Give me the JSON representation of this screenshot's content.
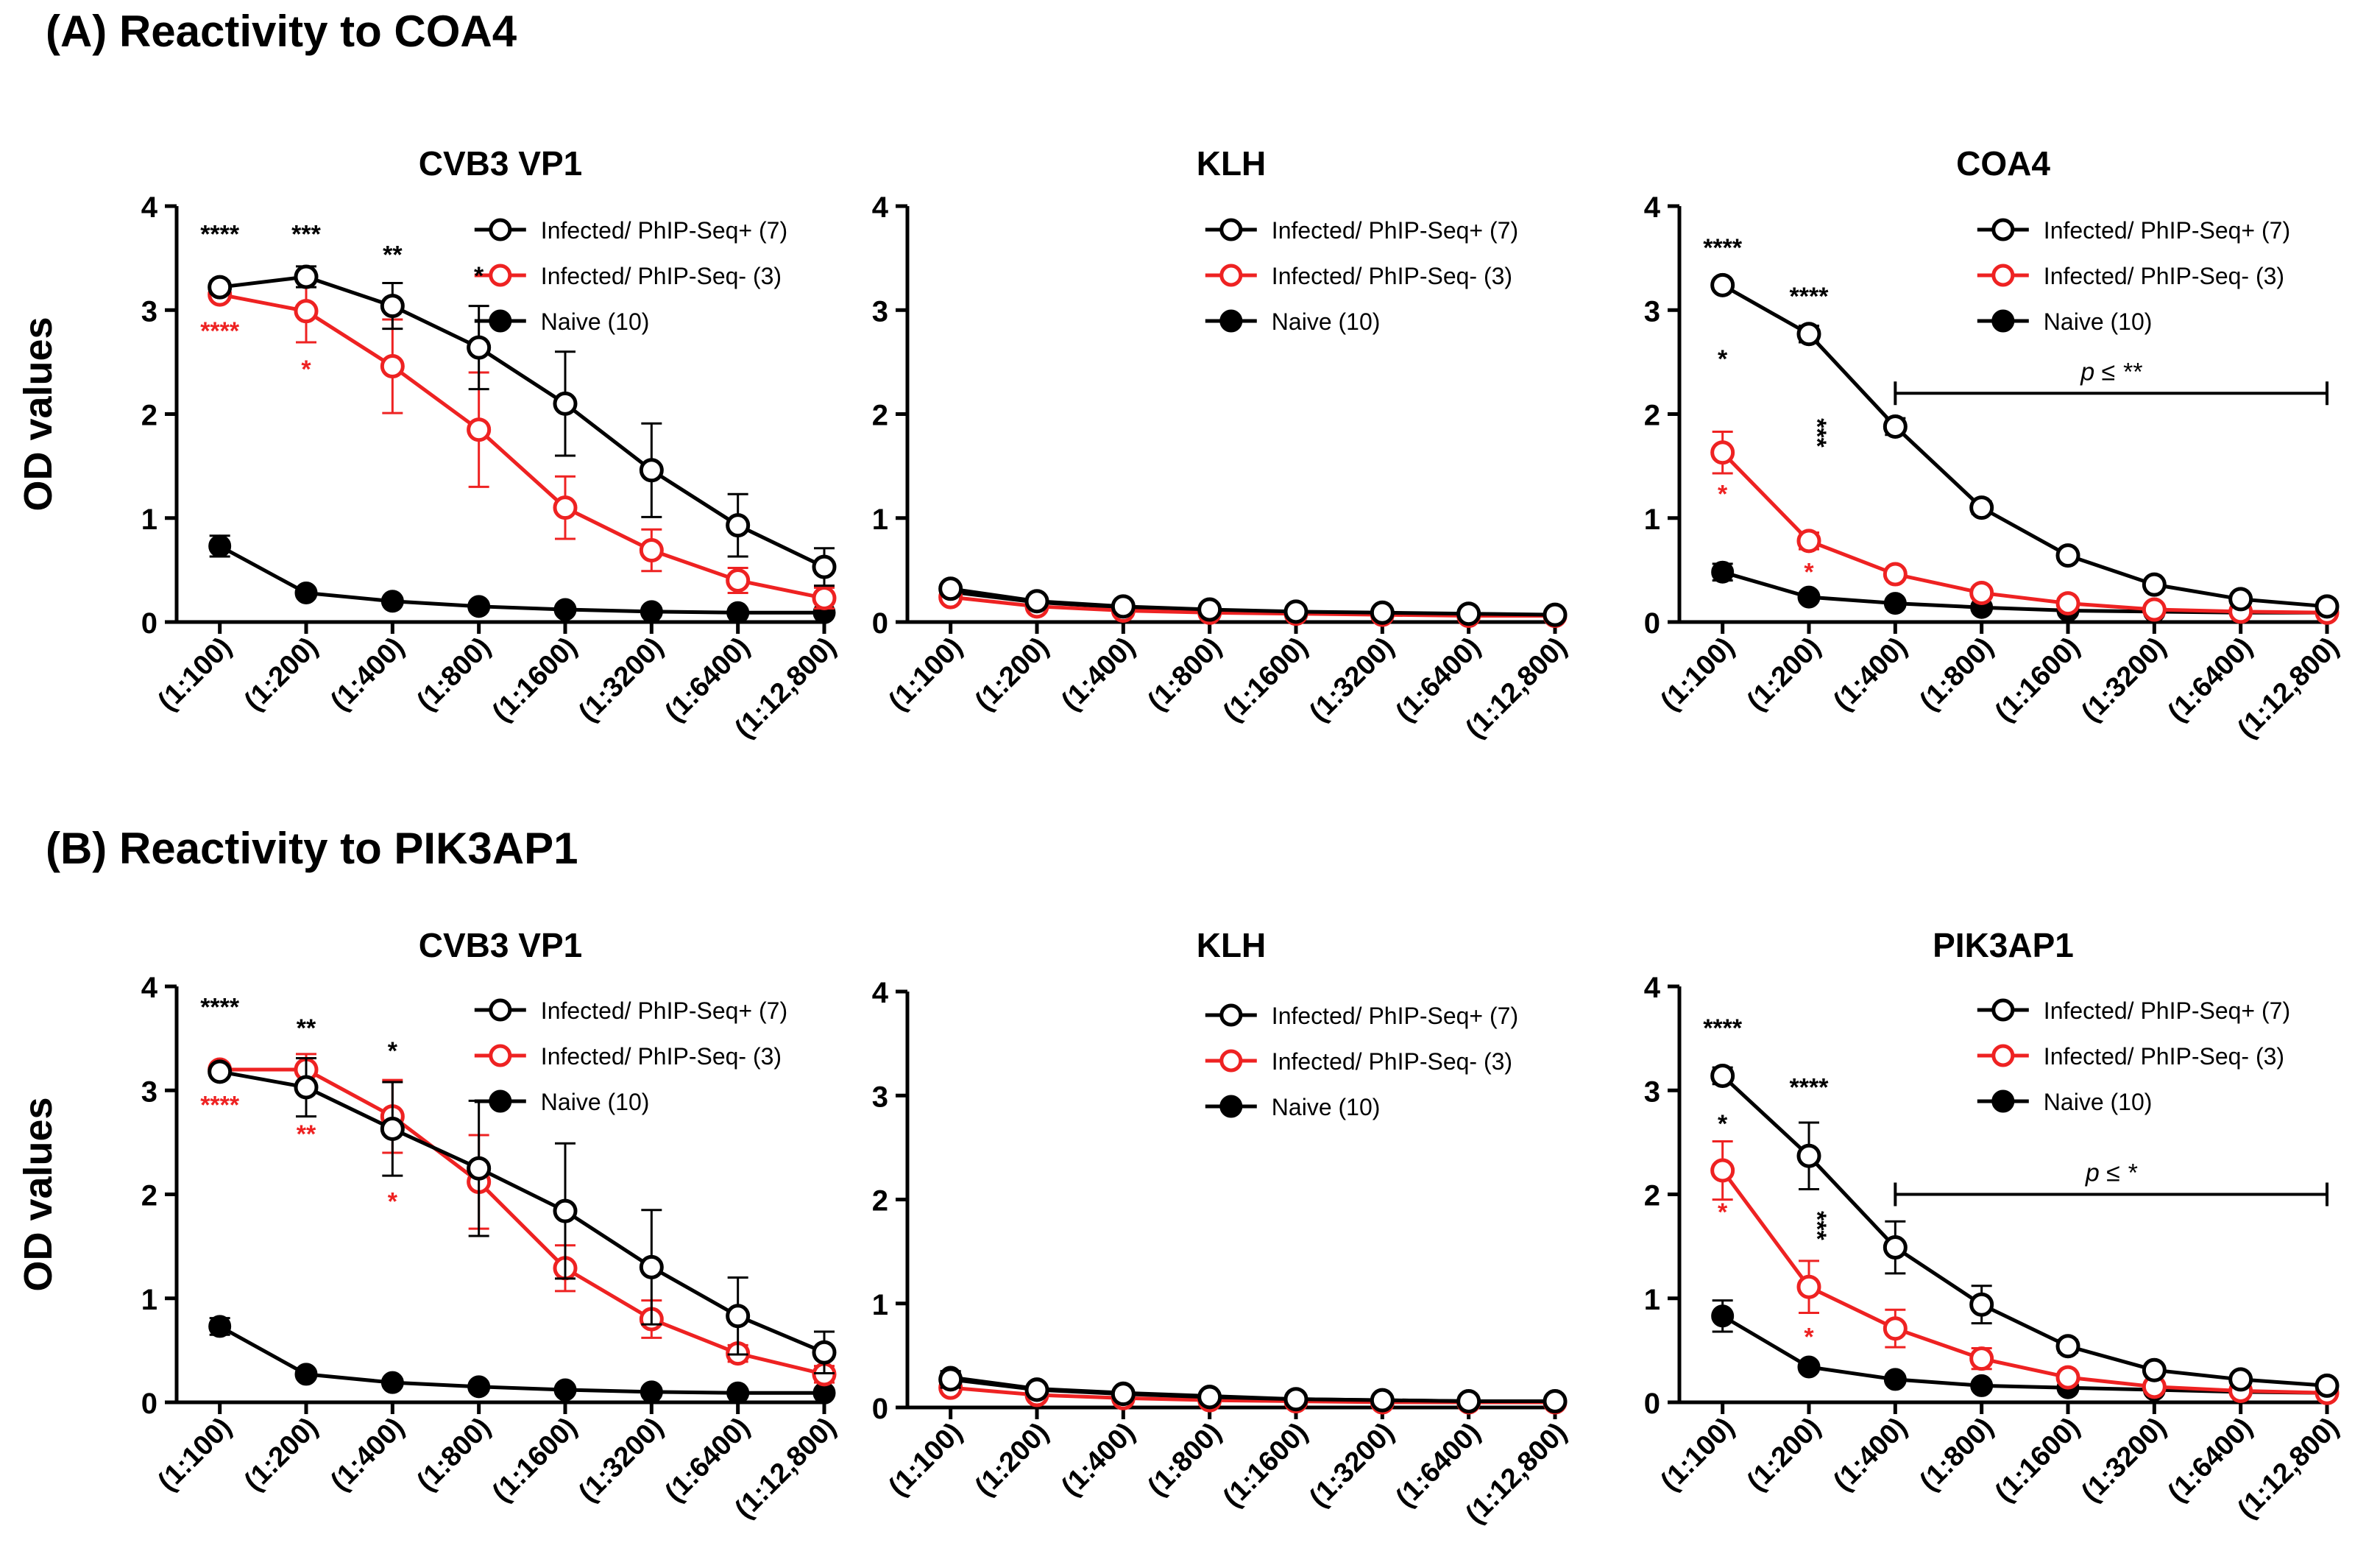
{
  "sections": [
    {
      "label": "(A) Reactivity to COA4"
    },
    {
      "label": "(B) Reactivity to PIK3AP1"
    }
  ],
  "colors": {
    "infected_pos": "#000000",
    "infected_neg": "#ee2222",
    "naive": "#000000"
  },
  "chart_data": [
    {
      "type": "line",
      "title": "CVB3 VP1",
      "ylabel": "OD values",
      "ylim": [
        0,
        4
      ],
      "yticks": [
        "0",
        "1",
        "2",
        "3",
        "4"
      ],
      "categories": [
        "(1:100)",
        "(1:200)",
        "(1:400)",
        "(1:800)",
        "(1:1600)",
        "(1:3200)",
        "(1:6400)",
        "(1:12,800)"
      ],
      "legend_position": "top-right",
      "series": [
        {
          "name": "Infected/ PhIP-Seq+ (7)",
          "marker": "open-circle",
          "color": "#000000",
          "values": [
            3.22,
            3.32,
            3.04,
            2.64,
            2.1,
            1.46,
            0.93,
            0.53
          ],
          "errors": [
            0.06,
            0.1,
            0.22,
            0.4,
            0.5,
            0.45,
            0.3,
            0.18
          ]
        },
        {
          "name": "Infected/ PhIP-Seq- (3)",
          "marker": "open-circle",
          "color": "#ee2222",
          "values": [
            3.15,
            2.99,
            2.46,
            1.85,
            1.1,
            0.69,
            0.4,
            0.23
          ],
          "errors": [
            0.05,
            0.3,
            0.45,
            0.55,
            0.3,
            0.2,
            0.12,
            0.1
          ]
        },
        {
          "name": "Naive (10)",
          "marker": "filled-circle",
          "color": "#000000",
          "values": [
            0.73,
            0.28,
            0.2,
            0.15,
            0.12,
            0.1,
            0.09,
            0.09
          ],
          "errors": [
            0.1,
            0.03,
            0.02,
            0.02,
            0.02,
            0.02,
            0.02,
            0.02
          ]
        }
      ],
      "annotations": [
        {
          "text": "****",
          "index": 0,
          "y": 3.65,
          "color": "#000000"
        },
        {
          "text": "***",
          "index": 1,
          "y": 3.65,
          "color": "#000000"
        },
        {
          "text": "**",
          "index": 2,
          "y": 3.45,
          "color": "#000000"
        },
        {
          "text": "*",
          "index": 3,
          "y": 3.25,
          "color": "#000000"
        },
        {
          "text": "****",
          "index": 0,
          "y": 2.72,
          "color": "#ee2222"
        },
        {
          "text": "*",
          "index": 1,
          "y": 2.35,
          "color": "#ee2222"
        }
      ]
    },
    {
      "type": "line",
      "title": "KLH",
      "ylabel": "",
      "ylim": [
        0,
        4
      ],
      "yticks": [
        "0",
        "1",
        "2",
        "3",
        "4"
      ],
      "categories": [
        "(1:100)",
        "(1:200)",
        "(1:400)",
        "(1:800)",
        "(1:1600)",
        "(1:3200)",
        "(1:6400)",
        "(1:12,800)"
      ],
      "legend_position": "top-right",
      "series": [
        {
          "name": "Infected/ PhIP-Seq+ (7)",
          "marker": "open-circle",
          "color": "#000000",
          "values": [
            0.32,
            0.2,
            0.15,
            0.12,
            0.1,
            0.09,
            0.08,
            0.07
          ],
          "errors": [
            0.03,
            0.02,
            0.02,
            0.01,
            0.01,
            0.01,
            0.01,
            0.01
          ]
        },
        {
          "name": "Infected/ PhIP-Seq- (3)",
          "marker": "open-circle",
          "color": "#ee2222",
          "values": [
            0.24,
            0.15,
            0.11,
            0.09,
            0.08,
            0.07,
            0.06,
            0.06
          ],
          "errors": [
            0.03,
            0.02,
            0.02,
            0.01,
            0.01,
            0.01,
            0.01,
            0.01
          ]
        },
        {
          "name": "Naive (10)",
          "marker": "filled-circle",
          "color": "#000000",
          "values": [
            0.29,
            0.19,
            0.14,
            0.11,
            0.09,
            0.08,
            0.07,
            0.07
          ],
          "errors": [
            0.02,
            0.02,
            0.01,
            0.01,
            0.01,
            0.01,
            0.01,
            0.01
          ]
        }
      ],
      "annotations": []
    },
    {
      "type": "line",
      "title": "COA4",
      "ylabel": "",
      "ylim": [
        0,
        4
      ],
      "yticks": [
        "0",
        "1",
        "2",
        "3",
        "4"
      ],
      "categories": [
        "(1:100)",
        "(1:200)",
        "(1:400)",
        "(1:800)",
        "(1:1600)",
        "(1:3200)",
        "(1:6400)",
        "(1:12,800)"
      ],
      "legend_position": "top-right",
      "series": [
        {
          "name": "Infected/ PhIP-Seq+ (7)",
          "marker": "open-circle",
          "color": "#000000",
          "values": [
            3.24,
            2.77,
            1.88,
            1.1,
            0.64,
            0.36,
            0.22,
            0.15
          ],
          "errors": [
            0.04,
            0.08,
            0.08,
            0.06,
            0.05,
            0.04,
            0.03,
            0.02
          ]
        },
        {
          "name": "Infected/ PhIP-Seq- (3)",
          "marker": "open-circle",
          "color": "#ee2222",
          "values": [
            1.63,
            0.78,
            0.46,
            0.28,
            0.18,
            0.12,
            0.1,
            0.09
          ],
          "errors": [
            0.2,
            0.08,
            0.05,
            0.03,
            0.02,
            0.02,
            0.02,
            0.01
          ]
        },
        {
          "name": "Naive (10)",
          "marker": "filled-circle",
          "color": "#000000",
          "values": [
            0.48,
            0.24,
            0.18,
            0.14,
            0.11,
            0.1,
            0.09,
            0.09
          ],
          "errors": [
            0.08,
            0.03,
            0.02,
            0.02,
            0.02,
            0.01,
            0.01,
            0.01
          ]
        }
      ],
      "annotations": [
        {
          "text": "****",
          "index": 0,
          "y": 3.52,
          "color": "#000000"
        },
        {
          "text": "****",
          "index": 1,
          "y": 3.05,
          "color": "#000000"
        },
        {
          "text": "*",
          "index": 0,
          "y": 2.45,
          "color": "#000000"
        },
        {
          "text": "***",
          "index": 1,
          "y": 1.82,
          "color": "#000000",
          "rotated": true
        },
        {
          "text": "*",
          "index": 0,
          "y": 1.15,
          "color": "#ee2222"
        },
        {
          "text": "*",
          "index": 1,
          "y": 0.4,
          "color": "#ee2222"
        }
      ],
      "bracket": {
        "from_index": 2,
        "to_index": 7,
        "y": 2.2,
        "label": "p ≤ **"
      }
    },
    {
      "type": "line",
      "title": "CVB3 VP1",
      "ylabel": "OD values",
      "ylim": [
        0,
        4
      ],
      "yticks": [
        "0",
        "1",
        "2",
        "3",
        "4"
      ],
      "categories": [
        "(1:100)",
        "(1:200)",
        "(1:400)",
        "(1:800)",
        "(1:1600)",
        "(1:3200)",
        "(1:6400)",
        "(1:12,800)"
      ],
      "legend_position": "top-right",
      "series": [
        {
          "name": "Infected/ PhIP-Seq+ (7)",
          "marker": "open-circle",
          "color": "#000000",
          "values": [
            3.18,
            3.03,
            2.63,
            2.25,
            1.84,
            1.3,
            0.83,
            0.48
          ],
          "errors": [
            0.05,
            0.28,
            0.45,
            0.65,
            0.65,
            0.55,
            0.37,
            0.2
          ]
        },
        {
          "name": "Infected/ PhIP-Seq- (3)",
          "marker": "open-circle",
          "color": "#ee2222",
          "values": [
            3.2,
            3.2,
            2.75,
            2.12,
            1.29,
            0.8,
            0.47,
            0.27
          ],
          "errors": [
            0.04,
            0.15,
            0.35,
            0.45,
            0.22,
            0.18,
            0.08,
            0.08
          ]
        },
        {
          "name": "Naive (10)",
          "marker": "filled-circle",
          "color": "#000000",
          "values": [
            0.73,
            0.27,
            0.19,
            0.15,
            0.12,
            0.1,
            0.09,
            0.09
          ],
          "errors": [
            0.08,
            0.03,
            0.02,
            0.02,
            0.02,
            0.02,
            0.01,
            0.01
          ]
        }
      ],
      "annotations": [
        {
          "text": "****",
          "index": 0,
          "y": 3.72,
          "color": "#000000"
        },
        {
          "text": "**",
          "index": 1,
          "y": 3.52,
          "color": "#000000"
        },
        {
          "text": "*",
          "index": 2,
          "y": 3.3,
          "color": "#000000"
        },
        {
          "text": "****",
          "index": 0,
          "y": 2.78,
          "color": "#ee2222"
        },
        {
          "text": "**",
          "index": 1,
          "y": 2.5,
          "color": "#ee2222"
        },
        {
          "text": "*",
          "index": 2,
          "y": 1.85,
          "color": "#ee2222"
        }
      ]
    },
    {
      "type": "line",
      "title": "KLH",
      "ylabel": "",
      "ylim": [
        0,
        4
      ],
      "yticks": [
        "0",
        "1",
        "2",
        "3",
        "4"
      ],
      "categories": [
        "(1:100)",
        "(1:200)",
        "(1:400)",
        "(1:800)",
        "(1:1600)",
        "(1:3200)",
        "(1:6400)",
        "(1:12,800)"
      ],
      "legend_position": "top-right",
      "series": [
        {
          "name": "Infected/ PhIP-Seq+ (7)",
          "marker": "open-circle",
          "color": "#000000",
          "values": [
            0.27,
            0.17,
            0.13,
            0.1,
            0.08,
            0.07,
            0.06,
            0.06
          ],
          "errors": [
            0.08,
            0.03,
            0.02,
            0.01,
            0.01,
            0.01,
            0.01,
            0.01
          ]
        },
        {
          "name": "Infected/ PhIP-Seq- (3)",
          "marker": "open-circle",
          "color": "#ee2222",
          "values": [
            0.19,
            0.12,
            0.09,
            0.07,
            0.06,
            0.05,
            0.05,
            0.05
          ],
          "errors": [
            0.04,
            0.02,
            0.01,
            0.01,
            0.01,
            0.01,
            0.01,
            0.01
          ]
        },
        {
          "name": "Naive (10)",
          "marker": "filled-circle",
          "color": "#000000",
          "values": [
            0.29,
            0.18,
            0.14,
            0.11,
            0.08,
            0.07,
            0.06,
            0.06
          ],
          "errors": [
            0.05,
            0.02,
            0.02,
            0.01,
            0.01,
            0.01,
            0.01,
            0.01
          ]
        }
      ],
      "annotations": []
    },
    {
      "type": "line",
      "title": "PIK3AP1",
      "ylabel": "",
      "ylim": [
        0,
        4
      ],
      "yticks": [
        "0",
        "1",
        "2",
        "3",
        "4"
      ],
      "categories": [
        "(1:100)",
        "(1:200)",
        "(1:400)",
        "(1:800)",
        "(1:1600)",
        "(1:3200)",
        "(1:6400)",
        "(1:12,800)"
      ],
      "legend_position": "top-right",
      "series": [
        {
          "name": "Infected/ PhIP-Seq+ (7)",
          "marker": "open-circle",
          "color": "#000000",
          "values": [
            3.14,
            2.37,
            1.49,
            0.94,
            0.54,
            0.31,
            0.22,
            0.16
          ],
          "errors": [
            0.08,
            0.32,
            0.25,
            0.18,
            0.06,
            0.05,
            0.03,
            0.02
          ]
        },
        {
          "name": "Infected/ PhIP-Seq- (3)",
          "marker": "open-circle",
          "color": "#ee2222",
          "values": [
            2.23,
            1.11,
            0.71,
            0.42,
            0.24,
            0.15,
            0.11,
            0.09
          ],
          "errors": [
            0.28,
            0.25,
            0.18,
            0.1,
            0.05,
            0.03,
            0.02,
            0.02
          ]
        },
        {
          "name": "Naive (10)",
          "marker": "filled-circle",
          "color": "#000000",
          "values": [
            0.83,
            0.34,
            0.22,
            0.16,
            0.14,
            0.12,
            0.1,
            0.09
          ],
          "errors": [
            0.15,
            0.04,
            0.03,
            0.02,
            0.02,
            0.02,
            0.01,
            0.01
          ]
        }
      ],
      "annotations": [
        {
          "text": "****",
          "index": 0,
          "y": 3.52,
          "color": "#000000"
        },
        {
          "text": "****",
          "index": 1,
          "y": 2.95,
          "color": "#000000"
        },
        {
          "text": "*",
          "index": 0,
          "y": 2.6,
          "color": "#000000"
        },
        {
          "text": "***",
          "index": 1,
          "y": 1.7,
          "color": "#000000",
          "rotated": true
        },
        {
          "text": "*",
          "index": 0,
          "y": 1.75,
          "color": "#ee2222"
        },
        {
          "text": "*",
          "index": 1,
          "y": 0.55,
          "color": "#ee2222"
        }
      ],
      "bracket": {
        "from_index": 2,
        "to_index": 7,
        "y": 2.0,
        "label": "p ≤ *"
      }
    }
  ]
}
